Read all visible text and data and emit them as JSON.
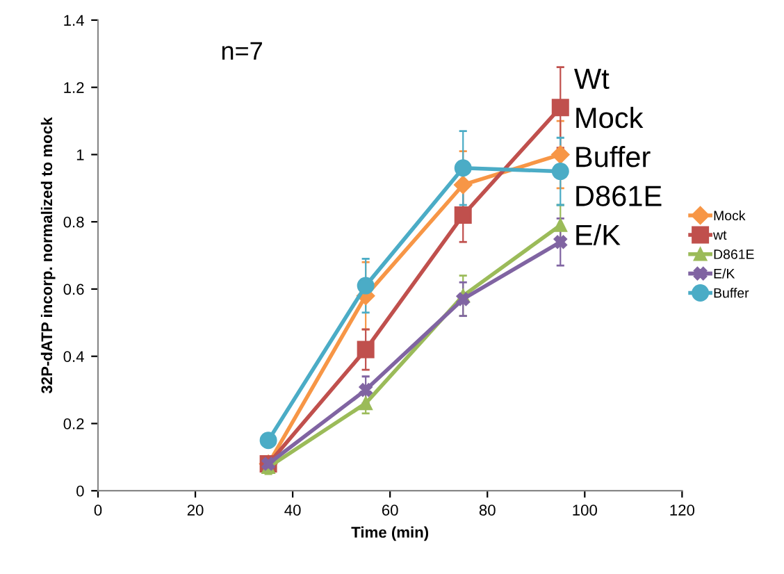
{
  "chart_data": {
    "type": "line",
    "xlabel": "Time (min)",
    "ylabel": "32P-dATP incorp. normalized to mock",
    "xlim": [
      0,
      120
    ],
    "xticks": [
      0,
      20,
      40,
      60,
      80,
      100,
      120
    ],
    "ylim": [
      0,
      1.4
    ],
    "yticks": [
      0,
      0.2,
      0.4,
      0.6,
      0.8,
      1,
      1.2,
      1.4
    ],
    "x": [
      35,
      55,
      75,
      95
    ],
    "grid": false,
    "legend": "right",
    "series": [
      {
        "name": "Mock",
        "color": "#f79646",
        "marker": "diamond",
        "values": [
          0.08,
          0.58,
          0.91,
          1.0
        ],
        "errors": [
          0.02,
          0.1,
          0.1,
          0.1
        ]
      },
      {
        "name": "wt",
        "color": "#c0504d",
        "marker": "square",
        "values": [
          0.08,
          0.42,
          0.82,
          1.14
        ],
        "errors": [
          0.02,
          0.06,
          0.08,
          0.12
        ]
      },
      {
        "name": "D861E",
        "color": "#9bbb59",
        "marker": "triangle",
        "values": [
          0.07,
          0.26,
          0.58,
          0.79
        ],
        "errors": [
          0.02,
          0.03,
          0.06,
          0.06
        ]
      },
      {
        "name": "E/K",
        "color": "#8064a2",
        "marker": "cross",
        "values": [
          0.08,
          0.3,
          0.57,
          0.74
        ],
        "errors": [
          0.02,
          0.04,
          0.05,
          0.07
        ]
      },
      {
        "name": "Buffer",
        "color": "#4bacc6",
        "marker": "circle",
        "values": [
          0.15,
          0.61,
          0.96,
          0.95
        ],
        "errors": [
          0.02,
          0.08,
          0.11,
          0.1
        ]
      }
    ],
    "annotations": [
      "n=7",
      "Wt",
      "Mock",
      "Buffer",
      "D861E",
      "E/K"
    ]
  }
}
